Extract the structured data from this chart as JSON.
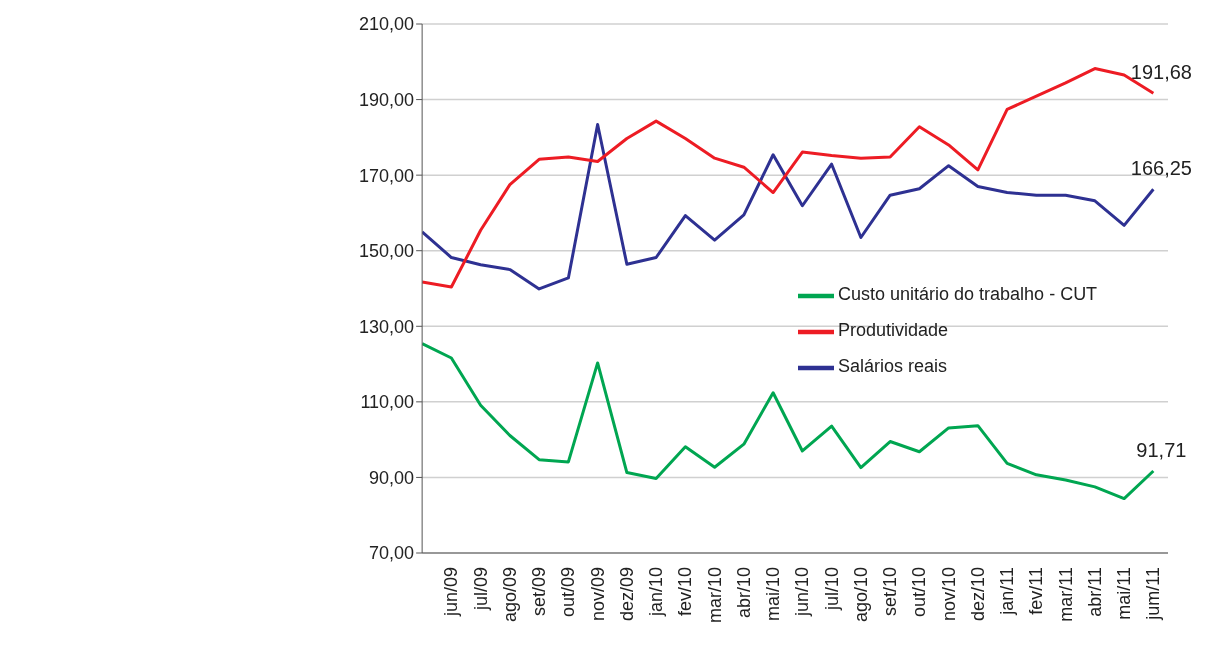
{
  "chart_data": {
    "type": "line",
    "categories": [
      null,
      "jun/09",
      "jul/09",
      "ago/09",
      "set/09",
      "out/09",
      "nov/09",
      "dez/09",
      "jan/10",
      "fev/10",
      "mar/10",
      "abr/10",
      "mai/10",
      "jun/10",
      "jul/10",
      "ago/10",
      "set/10",
      "out/10",
      "nov/10",
      "dez/10",
      "jan/11",
      "fev/11",
      "mar/11",
      "abr/11",
      "mai/11",
      "jum/11"
    ],
    "series": [
      {
        "name": "Salários reais",
        "color": "#2e3192",
        "values": [
          155,
          148.2,
          146.3,
          145,
          139.9,
          142.8,
          183.4,
          146.4,
          148.2,
          159.3,
          152.8,
          159.5,
          175.4,
          161.9,
          172.9,
          153.5,
          164.7,
          166.4,
          172.5,
          167,
          165.4,
          164.7,
          164.7,
          163.2,
          156.7,
          166.25
        ],
        "value_labels": [
          null,
          null,
          null,
          null,
          null,
          null,
          null,
          null,
          null,
          null,
          null,
          null,
          null,
          null,
          null,
          null,
          null,
          null,
          null,
          null,
          null,
          null,
          null,
          null,
          null,
          "166,25"
        ]
      },
      {
        "name": "Produtividade",
        "color": "#ed1c24",
        "values": [
          141.7,
          140.4,
          155.4,
          167.5,
          174.2,
          174.8,
          173.6,
          179.7,
          184.3,
          179.7,
          174.5,
          172.1,
          165.4,
          176.1,
          175.2,
          174.5,
          174.8,
          182.8,
          178,
          171.4,
          187.4,
          190.9,
          194.4,
          198.2,
          196.5,
          191.68
        ],
        "value_labels": [
          null,
          null,
          null,
          null,
          null,
          null,
          null,
          null,
          null,
          null,
          null,
          null,
          null,
          null,
          null,
          null,
          null,
          null,
          null,
          null,
          null,
          null,
          null,
          null,
          null,
          "191,68"
        ]
      },
      {
        "name": "Custo unitário do trabalho - CUT",
        "color": "#00a651",
        "values": [
          125.4,
          121.6,
          109.1,
          101.1,
          94.7,
          94.1,
          120.3,
          91.3,
          89.7,
          98.1,
          92.7,
          98.8,
          112.4,
          97,
          103.6,
          92.6,
          99.5,
          96.8,
          103.1,
          103.7,
          93.7,
          90.7,
          89.3,
          87.5,
          84.4,
          91.71
        ],
        "value_labels": [
          null,
          null,
          null,
          null,
          null,
          null,
          null,
          null,
          null,
          null,
          null,
          null,
          null,
          null,
          null,
          null,
          null,
          null,
          null,
          null,
          null,
          null,
          null,
          null,
          null,
          "91,71"
        ]
      }
    ],
    "ylim": [
      70,
      210
    ],
    "yticks": [
      {
        "value": 70,
        "label": "70,00"
      },
      {
        "value": 90,
        "label": "90,00"
      },
      {
        "value": 110,
        "label": "110,00"
      },
      {
        "value": 130,
        "label": "130,00"
      },
      {
        "value": 150,
        "label": "150,00"
      },
      {
        "value": 170,
        "label": "170,00"
      },
      {
        "value": 190,
        "label": "190,00"
      },
      {
        "value": 210,
        "label": "210,00"
      }
    ],
    "grid": "y",
    "legend": "right",
    "marker": "none",
    "line_style": "solid"
  }
}
